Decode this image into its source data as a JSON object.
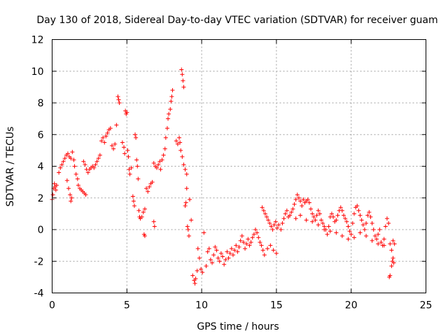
{
  "chart_data": {
    "type": "scatter",
    "title": "Day 130 of 2018, Sidereal Day-to-day VTEC variation (SDTVAR) for receiver guam",
    "xlabel": "GPS time / hours",
    "ylabel": "SDTVAR / TECUs",
    "xlim": [
      0,
      25
    ],
    "ylim": [
      -4,
      12
    ],
    "xticks": [
      "0",
      "5",
      "10",
      "15",
      "20",
      "25"
    ],
    "yticks": [
      "-4",
      "-2",
      "0",
      "2",
      "4",
      "6",
      "8",
      "10",
      "12"
    ],
    "grid": true,
    "marker": "plus",
    "color": "#ff0000",
    "series": [
      {
        "name": "SDTVAR",
        "points": [
          [
            0.0,
            1.9
          ],
          [
            0.05,
            2.2
          ],
          [
            0.1,
            2.6
          ],
          [
            0.15,
            2.9
          ],
          [
            0.2,
            2.7
          ],
          [
            0.25,
            2.5
          ],
          [
            0.3,
            2.8
          ],
          [
            0.45,
            3.6
          ],
          [
            0.55,
            3.9
          ],
          [
            0.65,
            4.1
          ],
          [
            0.75,
            4.3
          ],
          [
            0.85,
            4.5
          ],
          [
            0.95,
            4.7
          ],
          [
            1.05,
            4.8
          ],
          [
            1.15,
            4.6
          ],
          [
            1.25,
            4.5
          ],
          [
            1.35,
            4.9
          ],
          [
            1.45,
            4.4
          ],
          [
            1.0,
            3.1
          ],
          [
            1.1,
            2.6
          ],
          [
            1.2,
            2.2
          ],
          [
            1.25,
            1.8
          ],
          [
            1.3,
            2.0
          ],
          [
            1.5,
            4.0
          ],
          [
            1.6,
            3.5
          ],
          [
            1.7,
            3.2
          ],
          [
            1.75,
            2.8
          ],
          [
            1.85,
            2.6
          ],
          [
            1.95,
            2.5
          ],
          [
            2.05,
            2.4
          ],
          [
            2.15,
            2.3
          ],
          [
            2.25,
            2.2
          ],
          [
            2.1,
            4.3
          ],
          [
            2.2,
            4.1
          ],
          [
            2.3,
            3.8
          ],
          [
            2.4,
            3.6
          ],
          [
            2.5,
            3.8
          ],
          [
            2.6,
            3.9
          ],
          [
            2.7,
            4.0
          ],
          [
            2.8,
            3.9
          ],
          [
            2.9,
            4.1
          ],
          [
            3.0,
            4.3
          ],
          [
            3.1,
            4.5
          ],
          [
            3.2,
            4.7
          ],
          [
            3.3,
            5.6
          ],
          [
            3.4,
            5.8
          ],
          [
            3.5,
            5.5
          ],
          [
            3.6,
            5.9
          ],
          [
            3.7,
            6.1
          ],
          [
            3.8,
            6.3
          ],
          [
            3.9,
            6.4
          ],
          [
            4.0,
            5.3
          ],
          [
            4.1,
            5.1
          ],
          [
            4.2,
            5.4
          ],
          [
            4.3,
            6.6
          ],
          [
            4.4,
            8.4
          ],
          [
            4.45,
            8.2
          ],
          [
            4.5,
            8.0
          ],
          [
            4.7,
            5.5
          ],
          [
            4.8,
            5.2
          ],
          [
            4.85,
            4.8
          ],
          [
            4.9,
            7.5
          ],
          [
            4.95,
            7.3
          ],
          [
            5.0,
            7.4
          ],
          [
            5.05,
            5.0
          ],
          [
            5.1,
            4.6
          ],
          [
            5.15,
            3.8
          ],
          [
            5.2,
            3.5
          ],
          [
            5.3,
            3.9
          ],
          [
            5.4,
            2.1
          ],
          [
            5.45,
            1.8
          ],
          [
            5.5,
            1.5
          ],
          [
            5.55,
            6.0
          ],
          [
            5.6,
            5.8
          ],
          [
            5.65,
            4.4
          ],
          [
            5.7,
            4.0
          ],
          [
            5.75,
            3.2
          ],
          [
            5.8,
            1.2
          ],
          [
            5.85,
            0.8
          ],
          [
            5.9,
            0.7
          ],
          [
            6.0,
            0.8
          ],
          [
            6.1,
            1.1
          ],
          [
            6.2,
            1.3
          ],
          [
            6.15,
            -0.3
          ],
          [
            6.2,
            -0.4
          ],
          [
            6.3,
            2.6
          ],
          [
            6.4,
            2.4
          ],
          [
            6.5,
            2.7
          ],
          [
            6.6,
            2.9
          ],
          [
            6.7,
            3.0
          ],
          [
            6.8,
            4.2
          ],
          [
            6.9,
            4.0
          ],
          [
            7.0,
            3.9
          ],
          [
            7.1,
            4.1
          ],
          [
            7.2,
            4.3
          ],
          [
            6.8,
            0.5
          ],
          [
            6.85,
            0.2
          ],
          [
            7.25,
            3.8
          ],
          [
            7.35,
            4.4
          ],
          [
            7.45,
            4.7
          ],
          [
            7.55,
            5.1
          ],
          [
            7.6,
            5.8
          ],
          [
            7.7,
            6.4
          ],
          [
            7.75,
            7.0
          ],
          [
            7.8,
            7.3
          ],
          [
            7.9,
            7.6
          ],
          [
            7.95,
            8.1
          ],
          [
            8.0,
            8.4
          ],
          [
            8.05,
            8.8
          ],
          [
            8.3,
            5.6
          ],
          [
            8.4,
            5.4
          ],
          [
            8.5,
            5.8
          ],
          [
            8.55,
            5.5
          ],
          [
            8.6,
            5.0
          ],
          [
            8.7,
            4.6
          ],
          [
            8.8,
            4.1
          ],
          [
            8.9,
            3.8
          ],
          [
            9.0,
            3.5
          ],
          [
            8.65,
            10.1
          ],
          [
            8.7,
            9.8
          ],
          [
            8.75,
            9.4
          ],
          [
            8.8,
            9.0
          ],
          [
            8.9,
            1.5
          ],
          [
            8.95,
            1.7
          ],
          [
            9.0,
            2.6
          ],
          [
            9.2,
            1.9
          ],
          [
            9.05,
            0.2
          ],
          [
            9.1,
            0.0
          ],
          [
            9.15,
            -0.4
          ],
          [
            9.3,
            0.6
          ],
          [
            9.4,
            -2.9
          ],
          [
            9.5,
            -3.2
          ],
          [
            9.55,
            -3.4
          ],
          [
            9.6,
            -3.1
          ],
          [
            9.7,
            -2.6
          ],
          [
            9.75,
            -1.2
          ],
          [
            9.85,
            -1.8
          ],
          [
            9.95,
            -2.5
          ],
          [
            10.05,
            -2.7
          ],
          [
            10.15,
            -0.2
          ],
          [
            10.3,
            -2.3
          ],
          [
            10.4,
            -1.4
          ],
          [
            10.5,
            -1.2
          ],
          [
            10.6,
            -1.9
          ],
          [
            10.7,
            -2.1
          ],
          [
            10.8,
            -1.6
          ],
          [
            10.9,
            -1.1
          ],
          [
            11.0,
            -1.3
          ],
          [
            11.1,
            -1.8
          ],
          [
            11.2,
            -2.0
          ],
          [
            11.3,
            -1.5
          ],
          [
            11.4,
            -1.7
          ],
          [
            11.5,
            -2.2
          ],
          [
            11.6,
            -1.9
          ],
          [
            11.7,
            -1.4
          ],
          [
            11.8,
            -1.8
          ],
          [
            11.9,
            -1.5
          ],
          [
            12.0,
            -1.2
          ],
          [
            12.1,
            -1.6
          ],
          [
            12.2,
            -1.3
          ],
          [
            12.3,
            -1.0
          ],
          [
            12.4,
            -1.4
          ],
          [
            12.5,
            -1.1
          ],
          [
            12.6,
            -0.7
          ],
          [
            12.7,
            -0.4
          ],
          [
            12.8,
            -0.8
          ],
          [
            12.9,
            -1.2
          ],
          [
            13.0,
            -0.9
          ],
          [
            13.1,
            -0.6
          ],
          [
            13.2,
            -1.0
          ],
          [
            13.3,
            -0.8
          ],
          [
            13.4,
            -0.5
          ],
          [
            13.5,
            -0.3
          ],
          [
            13.6,
            0.0
          ],
          [
            13.7,
            -0.2
          ],
          [
            13.8,
            -0.5
          ],
          [
            13.9,
            -0.8
          ],
          [
            14.0,
            -1.0
          ],
          [
            14.1,
            -1.3
          ],
          [
            14.2,
            -1.6
          ],
          [
            14.4,
            -1.2
          ],
          [
            14.6,
            -1.0
          ],
          [
            14.8,
            -1.3
          ],
          [
            15.0,
            -1.5
          ],
          [
            14.05,
            1.4
          ],
          [
            14.15,
            1.2
          ],
          [
            14.25,
            1.0
          ],
          [
            14.35,
            0.8
          ],
          [
            14.45,
            0.6
          ],
          [
            14.55,
            0.4
          ],
          [
            14.65,
            0.2
          ],
          [
            14.75,
            0.0
          ],
          [
            14.85,
            0.3
          ],
          [
            14.95,
            0.5
          ],
          [
            15.05,
            0.1
          ],
          [
            15.15,
            0.3
          ],
          [
            15.3,
            0.0
          ],
          [
            15.4,
            0.4
          ],
          [
            15.5,
            0.7
          ],
          [
            15.6,
            1.0
          ],
          [
            15.7,
            1.2
          ],
          [
            15.8,
            0.8
          ],
          [
            15.9,
            0.9
          ],
          [
            16.0,
            1.1
          ],
          [
            16.1,
            1.3
          ],
          [
            16.2,
            1.6
          ],
          [
            16.3,
            1.9
          ],
          [
            16.4,
            2.2
          ],
          [
            16.5,
            2.0
          ],
          [
            16.6,
            1.8
          ],
          [
            16.7,
            1.5
          ],
          [
            16.8,
            1.9
          ],
          [
            16.9,
            1.7
          ],
          [
            17.0,
            1.8
          ],
          [
            17.1,
            1.9
          ],
          [
            17.2,
            1.7
          ],
          [
            17.3,
            1.3
          ],
          [
            17.4,
            1.0
          ],
          [
            17.5,
            0.8
          ],
          [
            17.6,
            0.6
          ],
          [
            17.7,
            0.9
          ],
          [
            17.8,
            1.2
          ],
          [
            17.9,
            1.0
          ],
          [
            18.0,
            0.6
          ],
          [
            18.1,
            0.4
          ],
          [
            18.2,
            0.2
          ],
          [
            18.3,
            0.0
          ],
          [
            18.4,
            -0.3
          ],
          [
            18.5,
            0.2
          ],
          [
            18.6,
            0.8
          ],
          [
            18.7,
            1.0
          ],
          [
            18.8,
            0.8
          ],
          [
            18.9,
            0.5
          ],
          [
            19.0,
            0.6
          ],
          [
            19.1,
            0.9
          ],
          [
            19.2,
            1.2
          ],
          [
            19.3,
            1.4
          ],
          [
            19.4,
            1.2
          ],
          [
            19.5,
            0.9
          ],
          [
            19.6,
            0.7
          ],
          [
            19.7,
            0.5
          ],
          [
            19.8,
            0.2
          ],
          [
            19.9,
            -0.1
          ],
          [
            20.0,
            -0.3
          ],
          [
            20.1,
            0.4
          ],
          [
            20.2,
            1.0
          ],
          [
            20.3,
            1.4
          ],
          [
            20.4,
            1.5
          ],
          [
            20.5,
            1.2
          ],
          [
            20.6,
            0.9
          ],
          [
            20.7,
            0.6
          ],
          [
            20.8,
            0.3
          ],
          [
            20.9,
            0.0
          ],
          [
            21.0,
            0.4
          ],
          [
            21.1,
            0.9
          ],
          [
            21.2,
            1.1
          ],
          [
            21.3,
            0.8
          ],
          [
            21.4,
            0.4
          ],
          [
            21.5,
            0.0
          ],
          [
            21.6,
            -0.4
          ],
          [
            21.7,
            -0.6
          ],
          [
            21.8,
            -0.3
          ],
          [
            21.9,
            0.0
          ],
          [
            22.0,
            -0.8
          ],
          [
            22.1,
            -1.0
          ],
          [
            22.2,
            -0.6
          ],
          [
            22.3,
            0.2
          ],
          [
            22.4,
            0.7
          ],
          [
            22.5,
            0.4
          ],
          [
            22.6,
            -0.9
          ],
          [
            22.7,
            -1.3
          ],
          [
            22.8,
            -0.7
          ],
          [
            22.9,
            -0.9
          ],
          [
            16.3,
            0.7
          ],
          [
            16.6,
            0.9
          ],
          [
            17.0,
            0.6
          ],
          [
            17.4,
            0.5
          ],
          [
            17.8,
            0.3
          ],
          [
            18.2,
            0.0
          ],
          [
            18.6,
            -0.1
          ],
          [
            19.0,
            -0.2
          ],
          [
            19.4,
            -0.4
          ],
          [
            19.8,
            -0.6
          ],
          [
            20.2,
            -0.5
          ],
          [
            20.6,
            -0.2
          ],
          [
            21.0,
            -0.4
          ],
          [
            21.4,
            -0.7
          ],
          [
            21.8,
            -0.9
          ],
          [
            22.2,
            -1.0
          ],
          [
            22.55,
            -3.0
          ],
          [
            22.6,
            -2.9
          ],
          [
            22.7,
            -2.3
          ],
          [
            22.75,
            -2.0
          ],
          [
            22.8,
            -1.8
          ],
          [
            22.85,
            -2.1
          ]
        ]
      }
    ]
  }
}
